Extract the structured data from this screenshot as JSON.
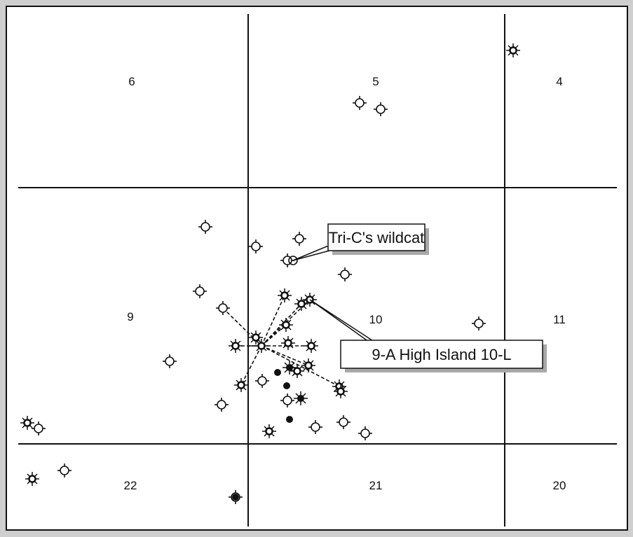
{
  "blocks": [
    {
      "number": "6"
    },
    {
      "number": "5"
    },
    {
      "number": "4"
    },
    {
      "number": "9"
    },
    {
      "number": "10"
    },
    {
      "number": "11"
    },
    {
      "number": "22"
    },
    {
      "number": "21"
    },
    {
      "number": "20"
    }
  ],
  "callouts": {
    "wildcat": "Tri-C's wildcat",
    "high_island": "9-A High Island 10-L"
  },
  "legend_symbols": {
    "well_symbol": "dry-hole-symbol",
    "gas_symbol": "gas-well-symbol",
    "oil_symbol": "oil-well-symbol",
    "proposed_symbol": "proposed-location-symbol"
  },
  "colors": {
    "line": "#111111",
    "frame": "#cfcfcf",
    "callout_fill": "#ffffff"
  }
}
